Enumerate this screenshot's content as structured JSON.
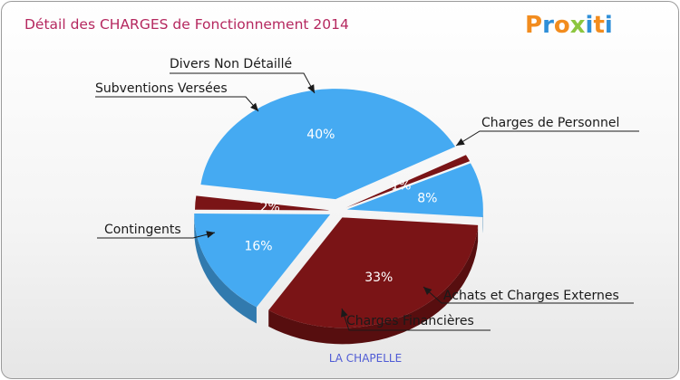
{
  "chart_data": {
    "type": "pie",
    "title": "Détail des CHARGES de Fonctionnement 2014",
    "caption": "LA CHAPELLE",
    "slices": [
      {
        "label": "Charges de Personnel",
        "value": 33,
        "pct_label": "33%",
        "color": "#7a1416"
      },
      {
        "label": "Achats et Charges Externes",
        "value": 16,
        "pct_label": "16%",
        "color": "#45aaf2"
      },
      {
        "label": "Charges Financières",
        "value": 2,
        "pct_label": "2%",
        "color": "#7a1416"
      },
      {
        "label": "Contingents",
        "value": 40,
        "pct_label": "40%",
        "color": "#45aaf2"
      },
      {
        "label": "Subventions Versées",
        "value": 1,
        "pct_label": "1%",
        "color": "#7a1416"
      },
      {
        "label": "Divers Non Détaillé",
        "value": 8,
        "pct_label": "8%",
        "color": "#45aaf2"
      }
    ]
  },
  "logo": {
    "letters": [
      "P",
      "r",
      "o",
      "x",
      "i",
      "t",
      "i"
    ],
    "colors": [
      "#f28c1e",
      "#2f8fd8",
      "#f28c1e",
      "#8cc63f",
      "#2f8fd8",
      "#f28c1e",
      "#2f8fd8"
    ]
  }
}
